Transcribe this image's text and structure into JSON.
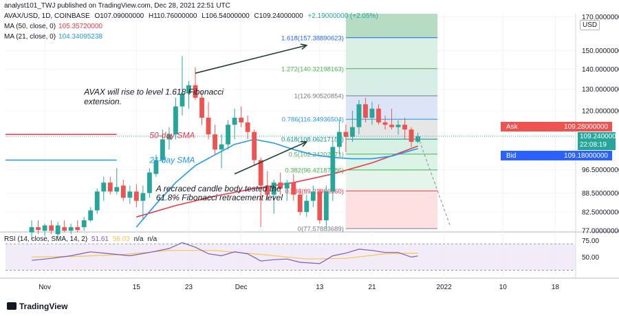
{
  "header": {
    "publish_line": "analyst101_TWJ published on TradingView.com, Dec 28, 2021 22:51 UTC"
  },
  "legend": {
    "symbol": "AVAX/USD, 1D, COINBASE",
    "open": "O107.09000000",
    "high": "H110.76000000",
    "low": "L106.54000000",
    "close": "C109.24000000",
    "change": "+2.19000000 (+2.05%)",
    "ma50_label": "MA (50, close, 0)",
    "ma50_value": "105.35720000",
    "ma21_label": "MA (21, close, 0)",
    "ma21_value": "104.34095238",
    "rsi_label": "RSI (14, close, SMA, 14, 2)",
    "rsi_value": "51.61",
    "rsi_sma": "56.03",
    "rsi_na1": "n/a",
    "rsi_na2": "n/a"
  },
  "price_tags": {
    "ask_label": "Ask",
    "ask_value": "109.28000000",
    "last_value": "109.24000000",
    "countdown": "22:08:19",
    "bid_label": "Bid",
    "bid_value": "109.18000000"
  },
  "footer": {
    "brand": "TradingView"
  },
  "colors": {
    "up": "#26a69a",
    "down": "#ef5350",
    "ma50": "#f23645",
    "ma21": "#2196f3",
    "rsi": "#7e57c2",
    "rsi_sma": "#f7c548",
    "annotation": "#1f3f3a"
  },
  "chart_data": {
    "type": "candlestick",
    "currency_badge": "USD",
    "y_axis": {
      "scale": "log",
      "range": [
        77,
        172
      ],
      "ticks": [
        {
          "value": 170,
          "label": "170.00000000"
        },
        {
          "value": 150,
          "label": "150.00000000"
        },
        {
          "value": 140,
          "label": "140.00000000"
        },
        {
          "value": 130,
          "label": "130.00000000"
        },
        {
          "value": 120,
          "label": "120.00000000"
        },
        {
          "value": 96.5,
          "label": "96.50000000"
        },
        {
          "value": 88.5,
          "label": "88.50000000"
        },
        {
          "value": 82.5,
          "label": "82.50000000"
        },
        {
          "value": 77,
          "label": "77.00000000"
        }
      ]
    },
    "x_axis": {
      "range": [
        "2021-10-26",
        "2022-01-21"
      ],
      "ticks": [
        {
          "date": "2021-11-01",
          "label": "Nov"
        },
        {
          "date": "2021-11-15",
          "label": "15"
        },
        {
          "date": "2021-11-23",
          "label": "23"
        },
        {
          "date": "2021-12-01",
          "label": "Dec"
        },
        {
          "date": "2021-12-13",
          "label": "13"
        },
        {
          "date": "2021-12-21",
          "label": "21"
        },
        {
          "date": "2022-01-01",
          "label": "2022"
        },
        {
          "date": "2022-01-10",
          "label": "10"
        },
        {
          "date": "2022-01-18",
          "label": "18"
        }
      ]
    },
    "candles": [
      {
        "date": "2021-10-30",
        "o": 76.5,
        "h": 80,
        "l": 74.5,
        "c": 78
      },
      {
        "date": "2021-10-31",
        "o": 78,
        "h": 80,
        "l": 76,
        "c": 77.2
      },
      {
        "date": "2021-11-01",
        "o": 77,
        "h": 79,
        "l": 75.5,
        "c": 78.5
      },
      {
        "date": "2021-11-02",
        "o": 78.5,
        "h": 80,
        "l": 76,
        "c": 77
      },
      {
        "date": "2021-11-03",
        "o": 76,
        "h": 79.5,
        "l": 75,
        "c": 78.5
      },
      {
        "date": "2021-11-04",
        "o": 78,
        "h": 80,
        "l": 76.5,
        "c": 77
      },
      {
        "date": "2021-11-05",
        "o": 77,
        "h": 79,
        "l": 76,
        "c": 78
      },
      {
        "date": "2021-11-06",
        "o": 78,
        "h": 80,
        "l": 76.5,
        "c": 77.2
      },
      {
        "date": "2021-11-07",
        "o": 78,
        "h": 81,
        "l": 77,
        "c": 80
      },
      {
        "date": "2021-11-08",
        "o": 80,
        "h": 84,
        "l": 79.5,
        "c": 83
      },
      {
        "date": "2021-11-09",
        "o": 83,
        "h": 90,
        "l": 82,
        "c": 89
      },
      {
        "date": "2021-11-10",
        "o": 89,
        "h": 94,
        "l": 86,
        "c": 92
      },
      {
        "date": "2021-11-11",
        "o": 92,
        "h": 94,
        "l": 88,
        "c": 89
      },
      {
        "date": "2021-11-12",
        "o": 89,
        "h": 97,
        "l": 88,
        "c": 90.5
      },
      {
        "date": "2021-11-13",
        "o": 91,
        "h": 93,
        "l": 86,
        "c": 87
      },
      {
        "date": "2021-11-14",
        "o": 87,
        "h": 91,
        "l": 85,
        "c": 89
      },
      {
        "date": "2021-11-15",
        "o": 89,
        "h": 91.5,
        "l": 84,
        "c": 86
      },
      {
        "date": "2021-11-16",
        "o": 86,
        "h": 91,
        "l": 80,
        "c": 88.5
      },
      {
        "date": "2021-11-17",
        "o": 88.5,
        "h": 97,
        "l": 87,
        "c": 95.5
      },
      {
        "date": "2021-11-18",
        "o": 95,
        "h": 102,
        "l": 94,
        "c": 100
      },
      {
        "date": "2021-11-19",
        "o": 100,
        "h": 112,
        "l": 99,
        "c": 108
      },
      {
        "date": "2021-11-20",
        "o": 108,
        "h": 113,
        "l": 104,
        "c": 110
      },
      {
        "date": "2021-11-21",
        "o": 110,
        "h": 126,
        "l": 108,
        "c": 122
      },
      {
        "date": "2021-11-22",
        "o": 122,
        "h": 147,
        "l": 118,
        "c": 128
      },
      {
        "date": "2021-11-23",
        "o": 128,
        "h": 134,
        "l": 121,
        "c": 132
      },
      {
        "date": "2021-11-24",
        "o": 132,
        "h": 141,
        "l": 125,
        "c": 126
      },
      {
        "date": "2021-11-25",
        "o": 126,
        "h": 129,
        "l": 114,
        "c": 117
      },
      {
        "date": "2021-11-26",
        "o": 117,
        "h": 124,
        "l": 108,
        "c": 110
      },
      {
        "date": "2021-11-27",
        "o": 110,
        "h": 114,
        "l": 102,
        "c": 104
      },
      {
        "date": "2021-11-28",
        "o": 104,
        "h": 110,
        "l": 97,
        "c": 106
      },
      {
        "date": "2021-11-29",
        "o": 106,
        "h": 116,
        "l": 104,
        "c": 114
      },
      {
        "date": "2021-11-30",
        "o": 114,
        "h": 121,
        "l": 108,
        "c": 117
      },
      {
        "date": "2021-12-01",
        "o": 117,
        "h": 122,
        "l": 113,
        "c": 115
      },
      {
        "date": "2021-12-02",
        "o": 115,
        "h": 118,
        "l": 108,
        "c": 111
      },
      {
        "date": "2021-12-03",
        "o": 111,
        "h": 112,
        "l": 98,
        "c": 100
      },
      {
        "date": "2021-12-04",
        "o": 100,
        "h": 101,
        "l": 78,
        "c": 91
      },
      {
        "date": "2021-12-05",
        "o": 91,
        "h": 96,
        "l": 86,
        "c": 88
      },
      {
        "date": "2021-12-06",
        "o": 88,
        "h": 93,
        "l": 82,
        "c": 92
      },
      {
        "date": "2021-12-07",
        "o": 92,
        "h": 95.5,
        "l": 88,
        "c": 90
      },
      {
        "date": "2021-12-08",
        "o": 90,
        "h": 93,
        "l": 86,
        "c": 92
      },
      {
        "date": "2021-12-09",
        "o": 92,
        "h": 95,
        "l": 86,
        "c": 88
      },
      {
        "date": "2021-12-10",
        "o": 88,
        "h": 90,
        "l": 81.5,
        "c": 82.5
      },
      {
        "date": "2021-12-11",
        "o": 82.5,
        "h": 88,
        "l": 81,
        "c": 86
      },
      {
        "date": "2021-12-12",
        "o": 86,
        "h": 91,
        "l": 84,
        "c": 89
      },
      {
        "date": "2021-12-13",
        "o": 89,
        "h": 90,
        "l": 79,
        "c": 80
      },
      {
        "date": "2021-12-14",
        "o": 80,
        "h": 91,
        "l": 77.5,
        "c": 89
      },
      {
        "date": "2021-12-15",
        "o": 89,
        "h": 107,
        "l": 86,
        "c": 105
      },
      {
        "date": "2021-12-16",
        "o": 105,
        "h": 116,
        "l": 102,
        "c": 111
      },
      {
        "date": "2021-12-17",
        "o": 111,
        "h": 114,
        "l": 103,
        "c": 109
      },
      {
        "date": "2021-12-18",
        "o": 109,
        "h": 120,
        "l": 107,
        "c": 113
      },
      {
        "date": "2021-12-19",
        "o": 113,
        "h": 125,
        "l": 110,
        "c": 123
      },
      {
        "date": "2021-12-20",
        "o": 123,
        "h": 126,
        "l": 115,
        "c": 117
      },
      {
        "date": "2021-12-21",
        "o": 117,
        "h": 124,
        "l": 114,
        "c": 121
      },
      {
        "date": "2021-12-22",
        "o": 121,
        "h": 123,
        "l": 114,
        "c": 115
      },
      {
        "date": "2021-12-23",
        "o": 115,
        "h": 118,
        "l": 112,
        "c": 114
      },
      {
        "date": "2021-12-24",
        "o": 114,
        "h": 121,
        "l": 112,
        "c": 113
      },
      {
        "date": "2021-12-25",
        "o": 113,
        "h": 116,
        "l": 110,
        "c": 114
      },
      {
        "date": "2021-12-26",
        "o": 114,
        "h": 117,
        "l": 108,
        "c": 112
      },
      {
        "date": "2021-12-27",
        "o": 112,
        "h": 113,
        "l": 105,
        "c": 107
      },
      {
        "date": "2021-12-28",
        "o": 107.09,
        "h": 110.76,
        "l": 106.54,
        "c": 109.24
      }
    ],
    "ma50": [
      {
        "date": "2021-11-15",
        "v": 81
      },
      {
        "date": "2021-11-21",
        "v": 84.5
      },
      {
        "date": "2021-11-27",
        "v": 87.5
      },
      {
        "date": "2021-12-03",
        "v": 90
      },
      {
        "date": "2021-12-09",
        "v": 92
      },
      {
        "date": "2021-12-15",
        "v": 95
      },
      {
        "date": "2021-12-21",
        "v": 99
      },
      {
        "date": "2021-12-25",
        "v": 102.5
      },
      {
        "date": "2021-12-28",
        "v": 105.36
      }
    ],
    "ma21": [
      {
        "date": "2021-11-15",
        "v": 78
      },
      {
        "date": "2021-11-18",
        "v": 85
      },
      {
        "date": "2021-11-21",
        "v": 92
      },
      {
        "date": "2021-11-24",
        "v": 98
      },
      {
        "date": "2021-11-27",
        "v": 102
      },
      {
        "date": "2021-11-30",
        "v": 106
      },
      {
        "date": "2021-12-03",
        "v": 108
      },
      {
        "date": "2021-12-06",
        "v": 106.5
      },
      {
        "date": "2021-12-09",
        "v": 104
      },
      {
        "date": "2021-12-12",
        "v": 102
      },
      {
        "date": "2021-12-15",
        "v": 101
      },
      {
        "date": "2021-12-18",
        "v": 100.5
      },
      {
        "date": "2021-12-21",
        "v": 100.5
      },
      {
        "date": "2021-12-24",
        "v": 101.5
      },
      {
        "date": "2021-12-28",
        "v": 104.34
      }
    ],
    "fibonacci": {
      "start": "2021-12-17",
      "end": "2021-12-31",
      "levels": [
        {
          "label": "1.618(157.38890623)",
          "value": 157.39,
          "fill": "#d9efe3"
        },
        {
          "label": "1.272(140.32198163)",
          "value": 140.32,
          "fill": "#d6eee6"
        },
        {
          "label": "1(126.90520854)",
          "value": 126.91,
          "fill": "#dbe5f7"
        },
        {
          "label": "0.786(116.34936504)",
          "value": 116.35,
          "fill": "#e6e6e6"
        },
        {
          "label": "0.618(108.06217157)",
          "value": 108.06,
          "fill": "#d6f0e4"
        },
        {
          "label": "0.5(102.24202271)",
          "value": 102.24,
          "fill": "#dcf3e8"
        },
        {
          "label": "0.382(96.42187386)",
          "value": 96.42,
          "fill": "#e5f5ec"
        },
        {
          "label": "0.236(89.21986060)",
          "value": 89.22,
          "fill": "#fde0df"
        },
        {
          "label": "0(77.57883689)",
          "value": 77.58,
          "fill": "#fde9e8"
        }
      ],
      "top": 172
    },
    "annotations": [
      {
        "text": "AVAX will rise to level 1.618 Fibonacci",
        "date": "2021-11-07",
        "value": 127.5
      },
      {
        "text": "extension.",
        "date": "2021-11-07",
        "value": 123
      },
      {
        "text": "50-day SMA",
        "date": "2021-11-17",
        "value": 108.5
      },
      {
        "text": "21-day SMA",
        "date": "2021-11-17",
        "value": 99
      },
      {
        "text": "A recraced candle body tested the",
        "date": "2021-11-18",
        "value": 89
      },
      {
        "text": "61.8% Fibonacci retracement level",
        "date": "2021-11-18",
        "value": 86.2
      }
    ],
    "horizontal_rays": [
      {
        "color": "#f23645",
        "value": 110,
        "from": "2021-10-26",
        "to": "2021-11-12"
      },
      {
        "color": "#2196f3",
        "value": 100,
        "from": "2021-10-26",
        "to": "2021-11-12"
      }
    ],
    "rsi": {
      "range": [
        20,
        85
      ],
      "ticks": [
        {
          "value": 75,
          "label": "75.00"
        },
        {
          "value": 50,
          "label": "50.00"
        }
      ],
      "band": [
        30,
        70
      ],
      "line": [
        {
          "date": "2021-10-30",
          "v": 45
        },
        {
          "date": "2021-11-02",
          "v": 48
        },
        {
          "date": "2021-11-05",
          "v": 52
        },
        {
          "date": "2021-11-08",
          "v": 58
        },
        {
          "date": "2021-11-11",
          "v": 55
        },
        {
          "date": "2021-11-14",
          "v": 52
        },
        {
          "date": "2021-11-17",
          "v": 57
        },
        {
          "date": "2021-11-20",
          "v": 63
        },
        {
          "date": "2021-11-22",
          "v": 72
        },
        {
          "date": "2021-11-24",
          "v": 65
        },
        {
          "date": "2021-11-26",
          "v": 55
        },
        {
          "date": "2021-11-28",
          "v": 52
        },
        {
          "date": "2021-11-30",
          "v": 58
        },
        {
          "date": "2021-12-02",
          "v": 55
        },
        {
          "date": "2021-12-04",
          "v": 44
        },
        {
          "date": "2021-12-06",
          "v": 46
        },
        {
          "date": "2021-12-08",
          "v": 47
        },
        {
          "date": "2021-12-10",
          "v": 42
        },
        {
          "date": "2021-12-13",
          "v": 40
        },
        {
          "date": "2021-12-15",
          "v": 52
        },
        {
          "date": "2021-12-17",
          "v": 56
        },
        {
          "date": "2021-12-19",
          "v": 62
        },
        {
          "date": "2021-12-21",
          "v": 60
        },
        {
          "date": "2021-12-23",
          "v": 57
        },
        {
          "date": "2021-12-25",
          "v": 57
        },
        {
          "date": "2021-12-27",
          "v": 50
        },
        {
          "date": "2021-12-28",
          "v": 51.61
        }
      ],
      "sma": [
        {
          "date": "2021-10-30",
          "v": 50
        },
        {
          "date": "2021-11-06",
          "v": 51
        },
        {
          "date": "2021-11-13",
          "v": 54
        },
        {
          "date": "2021-11-20",
          "v": 60
        },
        {
          "date": "2021-11-27",
          "v": 60
        },
        {
          "date": "2021-12-04",
          "v": 54
        },
        {
          "date": "2021-12-11",
          "v": 47
        },
        {
          "date": "2021-12-17",
          "v": 48
        },
        {
          "date": "2021-12-23",
          "v": 55
        },
        {
          "date": "2021-12-28",
          "v": 56.03
        }
      ]
    }
  }
}
